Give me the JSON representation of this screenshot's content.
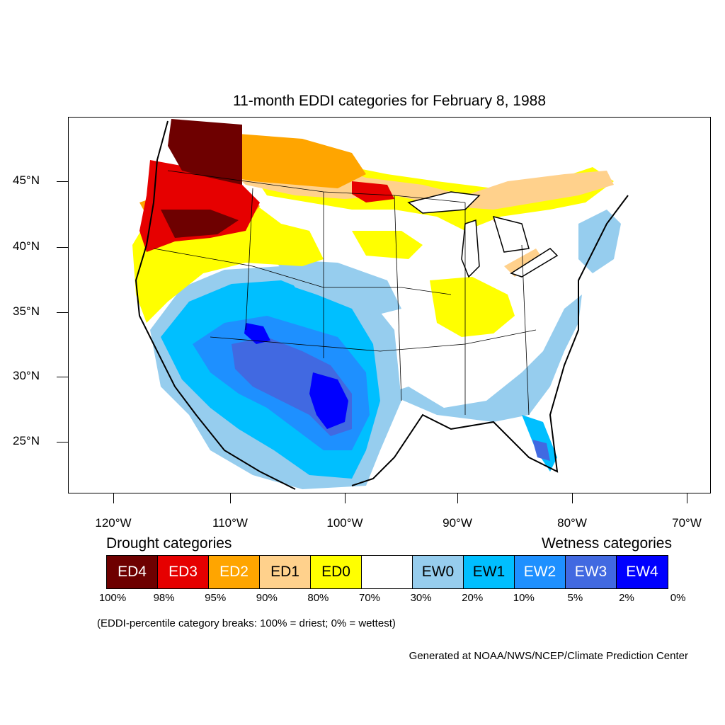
{
  "map": {
    "title": "11-month EDDI categories for February 8, 1988",
    "lat_labels": [
      "45°N",
      "40°N",
      "35°N",
      "30°N",
      "25°N"
    ],
    "lon_labels": [
      "120°W",
      "110°W",
      "100°W",
      "90°W",
      "80°W",
      "70°W"
    ],
    "regions": [
      {
        "category": "ED4",
        "area": "northern Idaho / northwest Montana"
      },
      {
        "category": "ED3",
        "area": "Oregon, Washington, southern Idaho"
      },
      {
        "category": "ED2",
        "area": "Montana, northern Minnesota"
      },
      {
        "category": "ED1",
        "area": "Northern Plains, northern Great Lakes"
      },
      {
        "category": "ED0",
        "area": "California, Dakotas, Ohio Valley, Great Lakes, New England"
      },
      {
        "category": "EW1",
        "area": "Southwest, Southern Rockies"
      },
      {
        "category": "EW2",
        "area": "Arizona, New Mexico, Texas"
      },
      {
        "category": "EW3",
        "area": "New Mexico, west Texas, south Florida"
      },
      {
        "category": "EW4",
        "area": "west Texas, south Florida"
      },
      {
        "category": "EW0",
        "area": "Gulf Coast, Mid-Atlantic, Kansas"
      }
    ]
  },
  "legend": {
    "drought_heading": "Drought categories",
    "wetness_heading": "Wetness categories",
    "categories": [
      {
        "label": "ED4",
        "color": "#6e0000",
        "text_color": "#ffffff"
      },
      {
        "label": "ED3",
        "color": "#e60000",
        "text_color": "#ffffff"
      },
      {
        "label": "ED2",
        "color": "#ffa500",
        "text_color": "#ffffff"
      },
      {
        "label": "ED1",
        "color": "#ffd18c",
        "text_color": "#000000"
      },
      {
        "label": "ED0",
        "color": "#ffff00",
        "text_color": "#000000"
      },
      {
        "label": "",
        "color": "#ffffff",
        "text_color": "#000000"
      },
      {
        "label": "EW0",
        "color": "#96cdee",
        "text_color": "#000000"
      },
      {
        "label": "EW1",
        "color": "#00bfff",
        "text_color": "#000000"
      },
      {
        "label": "EW2",
        "color": "#1e90ff",
        "text_color": "#ffffff"
      },
      {
        "label": "EW3",
        "color": "#4169e1",
        "text_color": "#ffffff"
      },
      {
        "label": "EW4",
        "color": "#0000ff",
        "text_color": "#ffffff"
      }
    ],
    "percent_breaks": [
      "100%",
      "98%",
      "95%",
      "90%",
      "80%",
      "70%",
      "30%",
      "20%",
      "10%",
      "5%",
      "2%",
      "0%"
    ],
    "note": "(EDDI-percentile category breaks: 100% = driest; 0% = wettest)"
  },
  "credit": "Generated at NOAA/NWS/NCEP/Climate Prediction Center"
}
